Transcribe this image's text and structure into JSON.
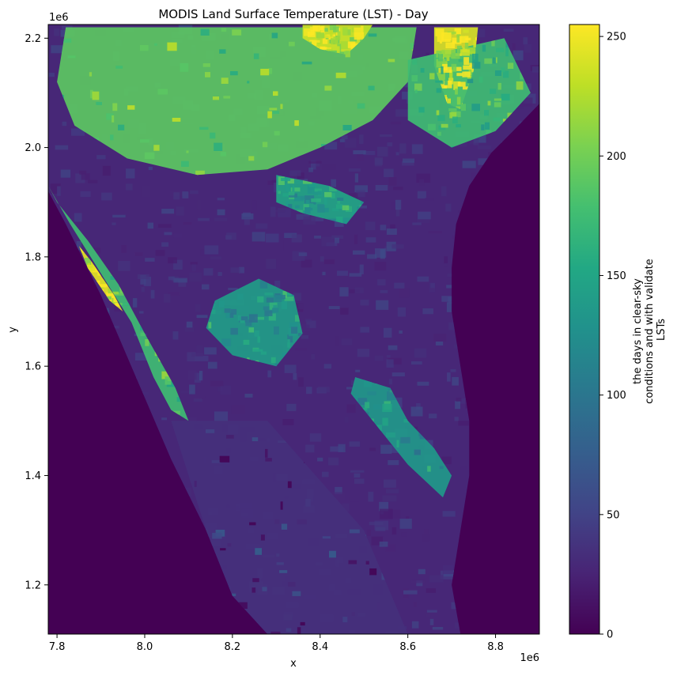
{
  "chart_data": {
    "type": "heatmap",
    "title": "MODIS Land Surface Temperature (LST) - Day",
    "xlabel": "x",
    "ylabel": "y",
    "x_offset_label": "1e6",
    "y_offset_label": "1e6",
    "xlim": [
      7.78,
      8.9
    ],
    "ylim": [
      1.11,
      2.225
    ],
    "x_ticks": [
      {
        "value": 7.8,
        "label": "7.8"
      },
      {
        "value": 8.0,
        "label": "8.0"
      },
      {
        "value": 8.2,
        "label": "8.2"
      },
      {
        "value": 8.4,
        "label": "8.4"
      },
      {
        "value": 8.6,
        "label": "8.6"
      },
      {
        "value": 8.8,
        "label": "8.8"
      }
    ],
    "y_ticks": [
      {
        "value": 1.2,
        "label": "1.2"
      },
      {
        "value": 1.4,
        "label": "1.4"
      },
      {
        "value": 1.6,
        "label": "1.6"
      },
      {
        "value": 1.8,
        "label": "1.8"
      },
      {
        "value": 2.0,
        "label": "2.0"
      },
      {
        "value": 2.2,
        "label": "2.2"
      }
    ],
    "colorbar": {
      "label_lines": [
        "the days in clear-sky",
        "conditions and with validate",
        "LSTs"
      ],
      "colormap": "viridis",
      "range": [
        0,
        255
      ],
      "ticks": [
        {
          "value": 0,
          "label": "0"
        },
        {
          "value": 50,
          "label": "50"
        },
        {
          "value": 100,
          "label": "100"
        },
        {
          "value": 150,
          "label": "150"
        },
        {
          "value": 200,
          "label": "200"
        },
        {
          "value": 250,
          "label": "250"
        }
      ]
    },
    "background_value": 0,
    "land_polygon": [
      [
        7.78,
        2.225
      ],
      [
        8.9,
        2.225
      ],
      [
        8.9,
        2.08
      ],
      [
        8.84,
        2.03
      ],
      [
        8.79,
        1.99
      ],
      [
        8.74,
        1.93
      ],
      [
        8.71,
        1.86
      ],
      [
        8.7,
        1.78
      ],
      [
        8.7,
        1.7
      ],
      [
        8.72,
        1.6
      ],
      [
        8.74,
        1.5
      ],
      [
        8.74,
        1.4
      ],
      [
        8.72,
        1.3
      ],
      [
        8.7,
        1.2
      ],
      [
        8.72,
        1.11
      ],
      [
        8.28,
        1.11
      ],
      [
        8.2,
        1.18
      ],
      [
        8.14,
        1.3
      ],
      [
        8.06,
        1.43
      ],
      [
        7.98,
        1.58
      ],
      [
        7.9,
        1.73
      ],
      [
        7.82,
        1.86
      ],
      [
        7.78,
        1.92
      ]
    ],
    "regions": [
      {
        "name": "north-interior-green",
        "value": 190,
        "points": [
          [
            7.82,
            2.22
          ],
          [
            8.62,
            2.22
          ],
          [
            8.6,
            2.12
          ],
          [
            8.52,
            2.05
          ],
          [
            8.4,
            2.0
          ],
          [
            8.28,
            1.96
          ],
          [
            8.12,
            1.95
          ],
          [
            7.96,
            1.98
          ],
          [
            7.84,
            2.04
          ],
          [
            7.8,
            2.12
          ]
        ]
      },
      {
        "name": "northeast-yellow",
        "value": 240,
        "points": [
          [
            8.66,
            2.22
          ],
          [
            8.76,
            2.22
          ],
          [
            8.75,
            2.14
          ],
          [
            8.72,
            2.07
          ],
          [
            8.69,
            2.08
          ],
          [
            8.66,
            2.15
          ]
        ]
      },
      {
        "name": "north-yellow-band",
        "value": 235,
        "points": [
          [
            8.36,
            2.225
          ],
          [
            8.52,
            2.225
          ],
          [
            8.5,
            2.2
          ],
          [
            8.46,
            2.17
          ],
          [
            8.4,
            2.18
          ],
          [
            8.36,
            2.2
          ]
        ]
      },
      {
        "name": "east-coast-green",
        "value": 175,
        "points": [
          [
            8.6,
            2.16
          ],
          [
            8.82,
            2.2
          ],
          [
            8.88,
            2.1
          ],
          [
            8.8,
            2.03
          ],
          [
            8.7,
            2.0
          ],
          [
            8.6,
            2.05
          ]
        ]
      },
      {
        "name": "west-coast-strip",
        "value": 175,
        "points": [
          [
            7.78,
            1.93
          ],
          [
            7.83,
            1.86
          ],
          [
            7.9,
            1.77
          ],
          [
            7.97,
            1.68
          ],
          [
            8.02,
            1.58
          ],
          [
            8.06,
            1.52
          ],
          [
            8.1,
            1.5
          ],
          [
            8.07,
            1.56
          ],
          [
            8.0,
            1.66
          ],
          [
            7.94,
            1.75
          ],
          [
            7.87,
            1.83
          ],
          [
            7.8,
            1.9
          ],
          [
            7.78,
            1.93
          ]
        ]
      },
      {
        "name": "west-coast-yellow",
        "value": 245,
        "points": [
          [
            7.85,
            1.82
          ],
          [
            7.88,
            1.79
          ],
          [
            7.93,
            1.73
          ],
          [
            7.95,
            1.7
          ],
          [
            7.92,
            1.72
          ],
          [
            7.87,
            1.78
          ]
        ]
      },
      {
        "name": "central-patch",
        "value": 140,
        "points": [
          [
            8.16,
            1.72
          ],
          [
            8.26,
            1.76
          ],
          [
            8.34,
            1.73
          ],
          [
            8.36,
            1.66
          ],
          [
            8.3,
            1.6
          ],
          [
            8.2,
            1.62
          ],
          [
            8.14,
            1.67
          ]
        ]
      },
      {
        "name": "east-patch",
        "value": 135,
        "points": [
          [
            8.48,
            1.58
          ],
          [
            8.56,
            1.56
          ],
          [
            8.6,
            1.5
          ],
          [
            8.66,
            1.45
          ],
          [
            8.7,
            1.4
          ],
          [
            8.68,
            1.36
          ],
          [
            8.6,
            1.42
          ],
          [
            8.52,
            1.5
          ],
          [
            8.47,
            1.55
          ]
        ]
      },
      {
        "name": "mid-north-teal",
        "value": 150,
        "points": [
          [
            8.3,
            1.95
          ],
          [
            8.42,
            1.93
          ],
          [
            8.5,
            1.9
          ],
          [
            8.46,
            1.86
          ],
          [
            8.36,
            1.88
          ],
          [
            8.3,
            1.9
          ]
        ]
      },
      {
        "name": "southwest-plain",
        "value": 35,
        "points": [
          [
            8.06,
            1.5
          ],
          [
            8.28,
            1.5
          ],
          [
            8.5,
            1.3
          ],
          [
            8.6,
            1.11
          ],
          [
            8.28,
            1.11
          ],
          [
            8.2,
            1.18
          ],
          [
            8.14,
            1.3
          ]
        ]
      }
    ],
    "speckle_seed": 7,
    "speckle_value_range": [
      20,
      60
    ]
  }
}
